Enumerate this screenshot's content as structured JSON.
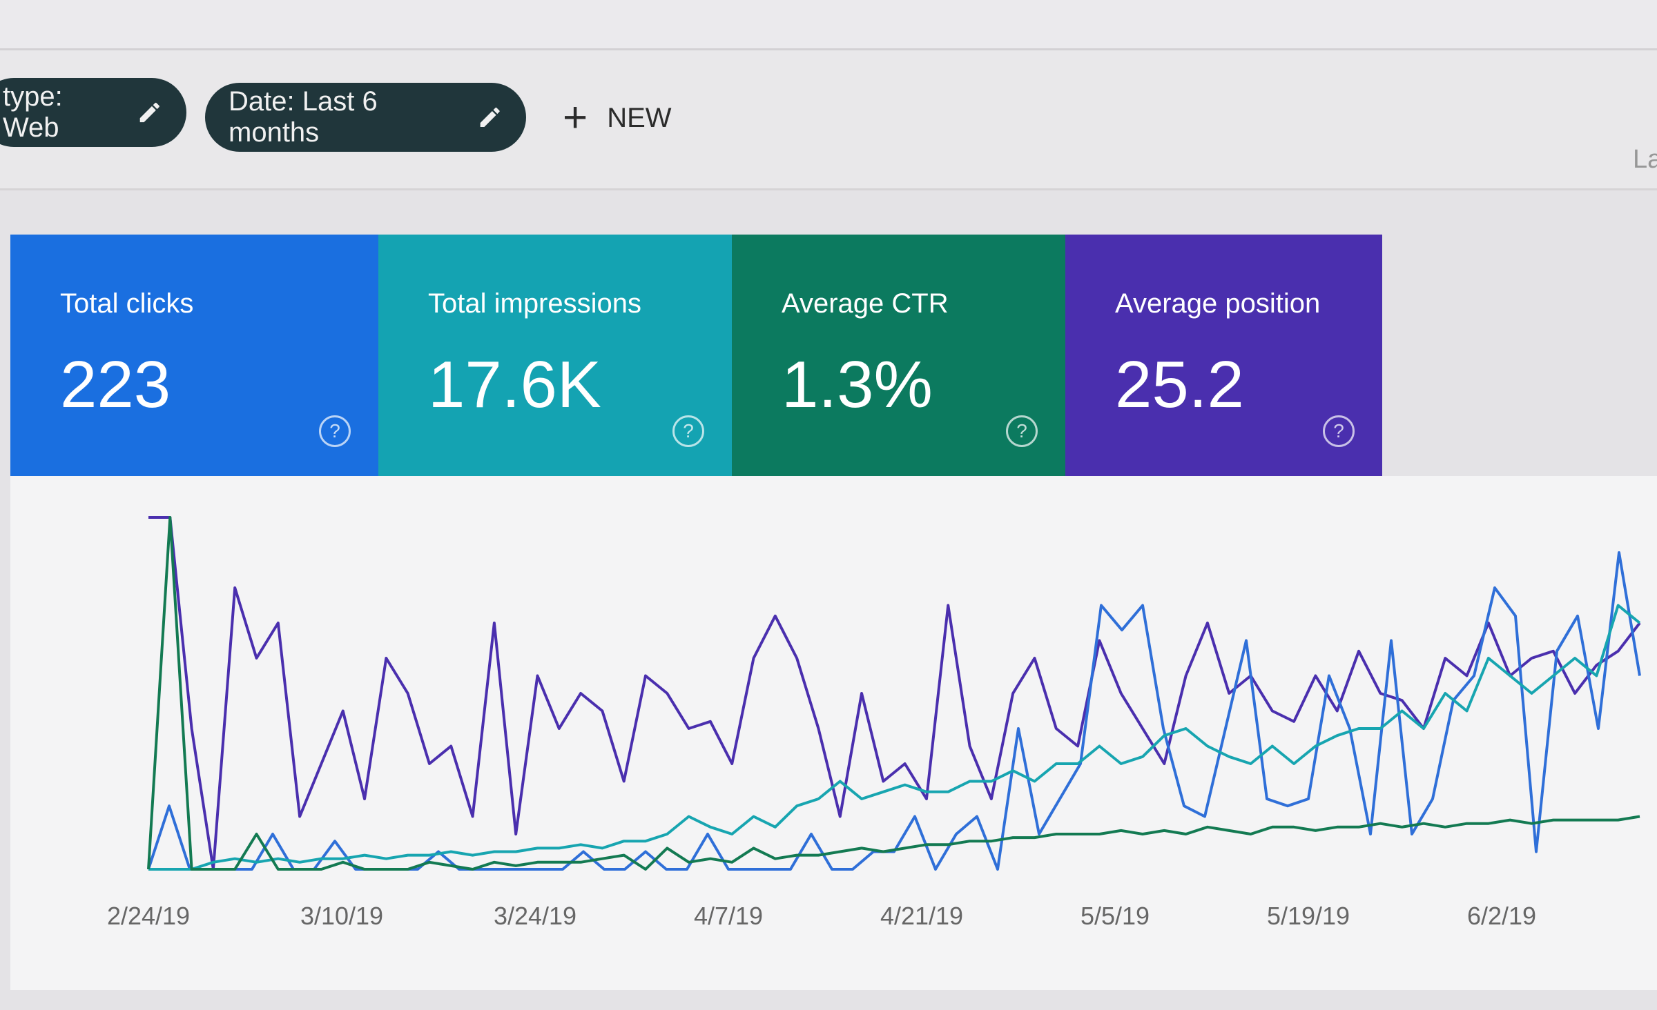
{
  "filters": [
    {
      "label": "type: Web",
      "icon": "pencil-icon"
    },
    {
      "label": "Date: Last 6 months",
      "icon": "pencil-icon"
    }
  ],
  "new_button": {
    "label": "NEW",
    "icon": "plus-icon"
  },
  "cut_text": "La",
  "cards": [
    {
      "label": "Total clicks",
      "value": "223",
      "color": "#1a6fe0"
    },
    {
      "label": "Total impressions",
      "value": "17.6K",
      "color": "#14a3b2"
    },
    {
      "label": "Average CTR",
      "value": "1.3%",
      "color": "#0c7a5f"
    },
    {
      "label": "Average position",
      "value": "25.2",
      "color": "#4a2fae"
    }
  ],
  "chart_data": {
    "type": "line",
    "x_start": "2019-02-24",
    "x_end": "2019-06-12",
    "x_ticks": [
      "2/24/19",
      "3/10/19",
      "3/24/19",
      "4/7/19",
      "4/21/19",
      "5/5/19",
      "5/19/19",
      "6/2/19"
    ],
    "grid": false,
    "series": [
      {
        "color": "#4a2fae",
        "values": [
          100,
          100,
          40,
          0,
          80,
          60,
          70,
          15,
          30,
          45,
          20,
          60,
          50,
          30,
          35,
          15,
          70,
          10,
          55,
          40,
          50,
          45,
          25,
          55,
          50,
          40,
          42,
          30,
          60,
          72,
          60,
          40,
          15,
          50,
          25,
          30,
          20,
          75,
          35,
          20,
          50,
          60,
          40,
          35,
          65,
          50,
          40,
          30,
          55,
          70,
          50,
          55,
          45,
          42,
          55,
          45,
          62,
          50,
          48,
          40,
          60,
          55,
          70,
          55,
          60,
          62,
          50,
          58,
          62,
          70
        ]
      },
      {
        "color": "#2f6fd8",
        "values": [
          0,
          18,
          0,
          0,
          0,
          0,
          10,
          0,
          0,
          8,
          0,
          0,
          0,
          0,
          5,
          0,
          0,
          0,
          0,
          0,
          0,
          5,
          0,
          0,
          5,
          0,
          0,
          10,
          0,
          0,
          0,
          0,
          10,
          0,
          0,
          5,
          5,
          15,
          0,
          10,
          15,
          0,
          40,
          10,
          20,
          30,
          75,
          68,
          75,
          40,
          18,
          15,
          40,
          65,
          20,
          18,
          20,
          55,
          40,
          10,
          65,
          10,
          20,
          48,
          55,
          80,
          72,
          5,
          62,
          72,
          40,
          90,
          55
        ]
      },
      {
        "color": "#17a5b0",
        "values": [
          0,
          0,
          0,
          2,
          3,
          2,
          3,
          2,
          3,
          3,
          4,
          3,
          4,
          4,
          5,
          4,
          5,
          5,
          6,
          6,
          7,
          6,
          8,
          8,
          10,
          15,
          12,
          10,
          15,
          12,
          18,
          20,
          25,
          20,
          22,
          24,
          22,
          22,
          25,
          25,
          28,
          25,
          30,
          30,
          35,
          30,
          32,
          38,
          40,
          35,
          32,
          30,
          35,
          30,
          35,
          38,
          40,
          40,
          45,
          40,
          50,
          45,
          60,
          55,
          50,
          55,
          60,
          55,
          75,
          70
        ]
      },
      {
        "color": "#137a52",
        "values": [
          0,
          100,
          0,
          0,
          0,
          10,
          0,
          0,
          0,
          2,
          0,
          0,
          0,
          2,
          1,
          0,
          2,
          1,
          2,
          2,
          2,
          3,
          4,
          0,
          6,
          2,
          3,
          2,
          6,
          3,
          4,
          4,
          5,
          6,
          5,
          6,
          7,
          7,
          8,
          8,
          9,
          9,
          10,
          10,
          10,
          11,
          10,
          11,
          10,
          12,
          11,
          10,
          12,
          12,
          11,
          12,
          12,
          13,
          12,
          13,
          12,
          13,
          13,
          14,
          13,
          14,
          14,
          14,
          14,
          15
        ]
      }
    ]
  }
}
